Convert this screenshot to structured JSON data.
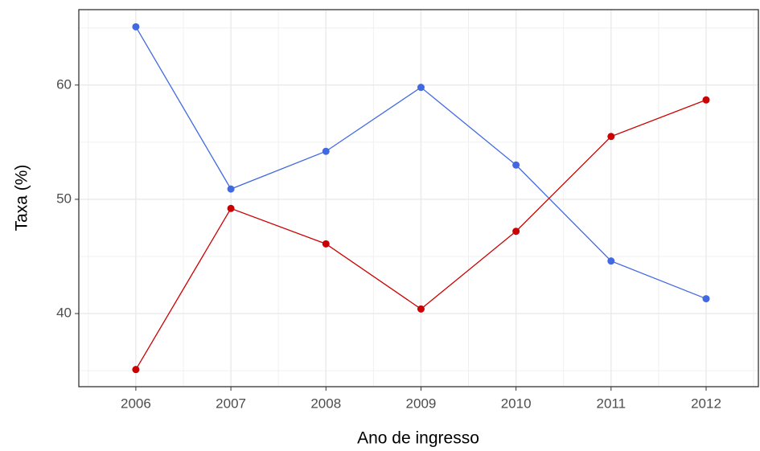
{
  "chart_data": {
    "type": "line",
    "x_label": "Ano de ingresso",
    "y_label": "Taxa (%)",
    "x": [
      2006,
      2007,
      2008,
      2009,
      2010,
      2011,
      2012
    ],
    "series": [
      {
        "color": "#4169e1",
        "values": [
          65.1,
          50.9,
          54.2,
          59.8,
          53.0,
          44.6,
          41.3
        ]
      },
      {
        "color": "#cc0000",
        "values": [
          35.1,
          49.2,
          46.1,
          40.4,
          47.2,
          55.5,
          58.7
        ]
      }
    ],
    "xlim": [
      2005.4,
      2012.55
    ],
    "xticks": [
      2006,
      2007,
      2008,
      2009,
      2010,
      2011,
      2012
    ],
    "ylim": [
      33.6,
      66.6
    ],
    "yticks": [
      40,
      50,
      60
    ],
    "grid": true
  }
}
